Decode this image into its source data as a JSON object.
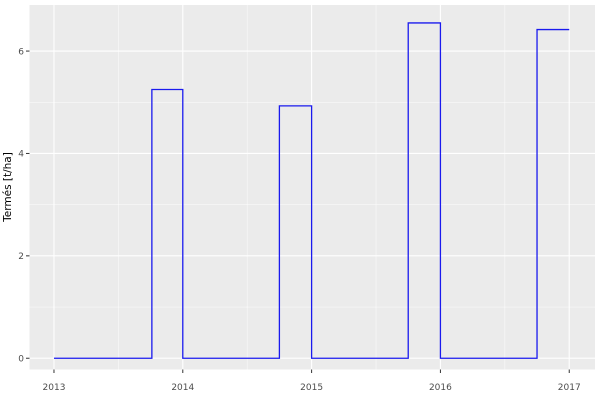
{
  "figure": {
    "title": "",
    "ylabel": "Termés [t/ha]"
  },
  "colors": {
    "background": "#FFFFFF",
    "panel_background": "#EBEBEB",
    "grid_major": "#FFFFFF",
    "grid_minor": "#F6F6F6",
    "line": "#1A1AEE",
    "axis_text": "#4D4D4D",
    "tick_mark": "#333333",
    "axis_title": "#000000"
  },
  "chart_data": {
    "type": "line",
    "subtype": "step",
    "title": "",
    "xlabel": "",
    "ylabel": "Termés [t/ha]",
    "x_ticks": [
      2013,
      2014,
      2015,
      2016,
      2017
    ],
    "x_tick_labels": [
      "2013",
      "2014",
      "2015",
      "2016",
      "2017"
    ],
    "y_ticks": [
      0,
      2,
      4,
      6
    ],
    "y_tick_labels": [
      "0",
      "2",
      "4",
      "6"
    ],
    "xlim": [
      2012.81,
      2017.2
    ],
    "ylim": [
      -0.22,
      6.9
    ],
    "grid": "major+minor",
    "legend_position": "none",
    "series": [
      {
        "name": "Termés",
        "color": "#1A1AEE",
        "points": [
          [
            2013.0,
            0
          ],
          [
            2013.76,
            0
          ],
          [
            2013.76,
            5.25
          ],
          [
            2014.0,
            5.25
          ],
          [
            2014.0,
            0
          ],
          [
            2014.75,
            0
          ],
          [
            2014.75,
            4.93
          ],
          [
            2015.0,
            4.93
          ],
          [
            2015.0,
            0
          ],
          [
            2015.75,
            0
          ],
          [
            2015.75,
            6.55
          ],
          [
            2016.0,
            6.55
          ],
          [
            2016.0,
            0
          ],
          [
            2016.75,
            0
          ],
          [
            2016.75,
            6.42
          ],
          [
            2017.0,
            6.42
          ]
        ]
      }
    ]
  }
}
